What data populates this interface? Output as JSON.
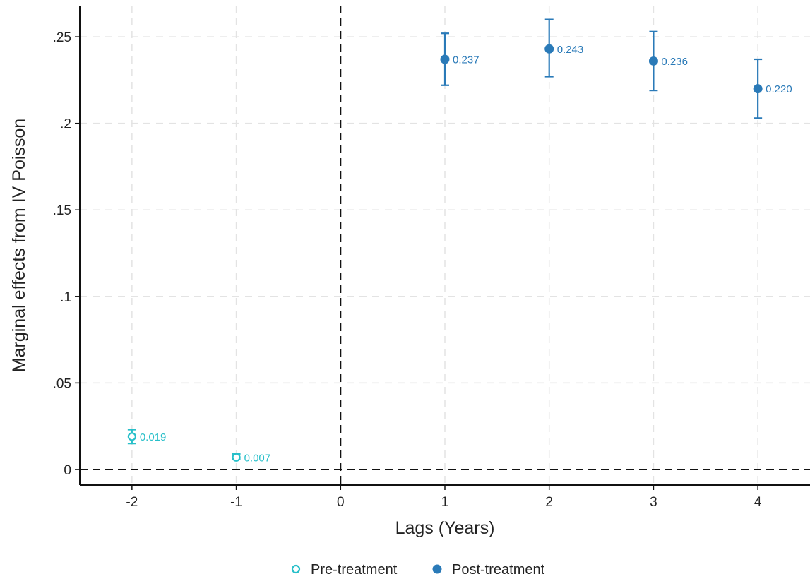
{
  "chart_data": {
    "type": "scatter",
    "title": "",
    "xlabel": "Lags (Years)",
    "ylabel": "Marginal effects from IV Poisson",
    "xlim": [
      -2.5,
      4.5
    ],
    "ylim": [
      -0.009,
      0.268
    ],
    "xticks": [
      -2,
      -1,
      0,
      1,
      2,
      3,
      4
    ],
    "xtick_labels": [
      "-2",
      "-1",
      "0",
      "1",
      "2",
      "3",
      "4"
    ],
    "yticks": [
      0,
      0.05,
      0.1,
      0.15,
      0.2,
      0.25
    ],
    "ytick_labels": [
      "0",
      ".05",
      ".1",
      ".15",
      ".2",
      ".25"
    ],
    "grid": true,
    "legend_position": "bottom-center",
    "reference_lines": {
      "x": 0,
      "y": 0
    },
    "series": [
      {
        "name": "Pre-treatment",
        "marker": "hollow-circle",
        "color": "#27bfc9",
        "points": [
          {
            "x": -2,
            "y": 0.019,
            "lo": 0.015,
            "hi": 0.023,
            "label": "0.019"
          },
          {
            "x": -1,
            "y": 0.007,
            "lo": 0.006,
            "hi": 0.009,
            "label": "0.007"
          }
        ]
      },
      {
        "name": "Post-treatment",
        "marker": "filled-circle",
        "color": "#2a7ab8",
        "points": [
          {
            "x": 1,
            "y": 0.237,
            "lo": 0.222,
            "hi": 0.252,
            "label": "0.237"
          },
          {
            "x": 2,
            "y": 0.243,
            "lo": 0.227,
            "hi": 0.26,
            "label": "0.243"
          },
          {
            "x": 3,
            "y": 0.236,
            "lo": 0.219,
            "hi": 0.253,
            "label": "0.236"
          },
          {
            "x": 4,
            "y": 0.22,
            "lo": 0.203,
            "hi": 0.237,
            "label": "0.220"
          }
        ]
      }
    ]
  }
}
